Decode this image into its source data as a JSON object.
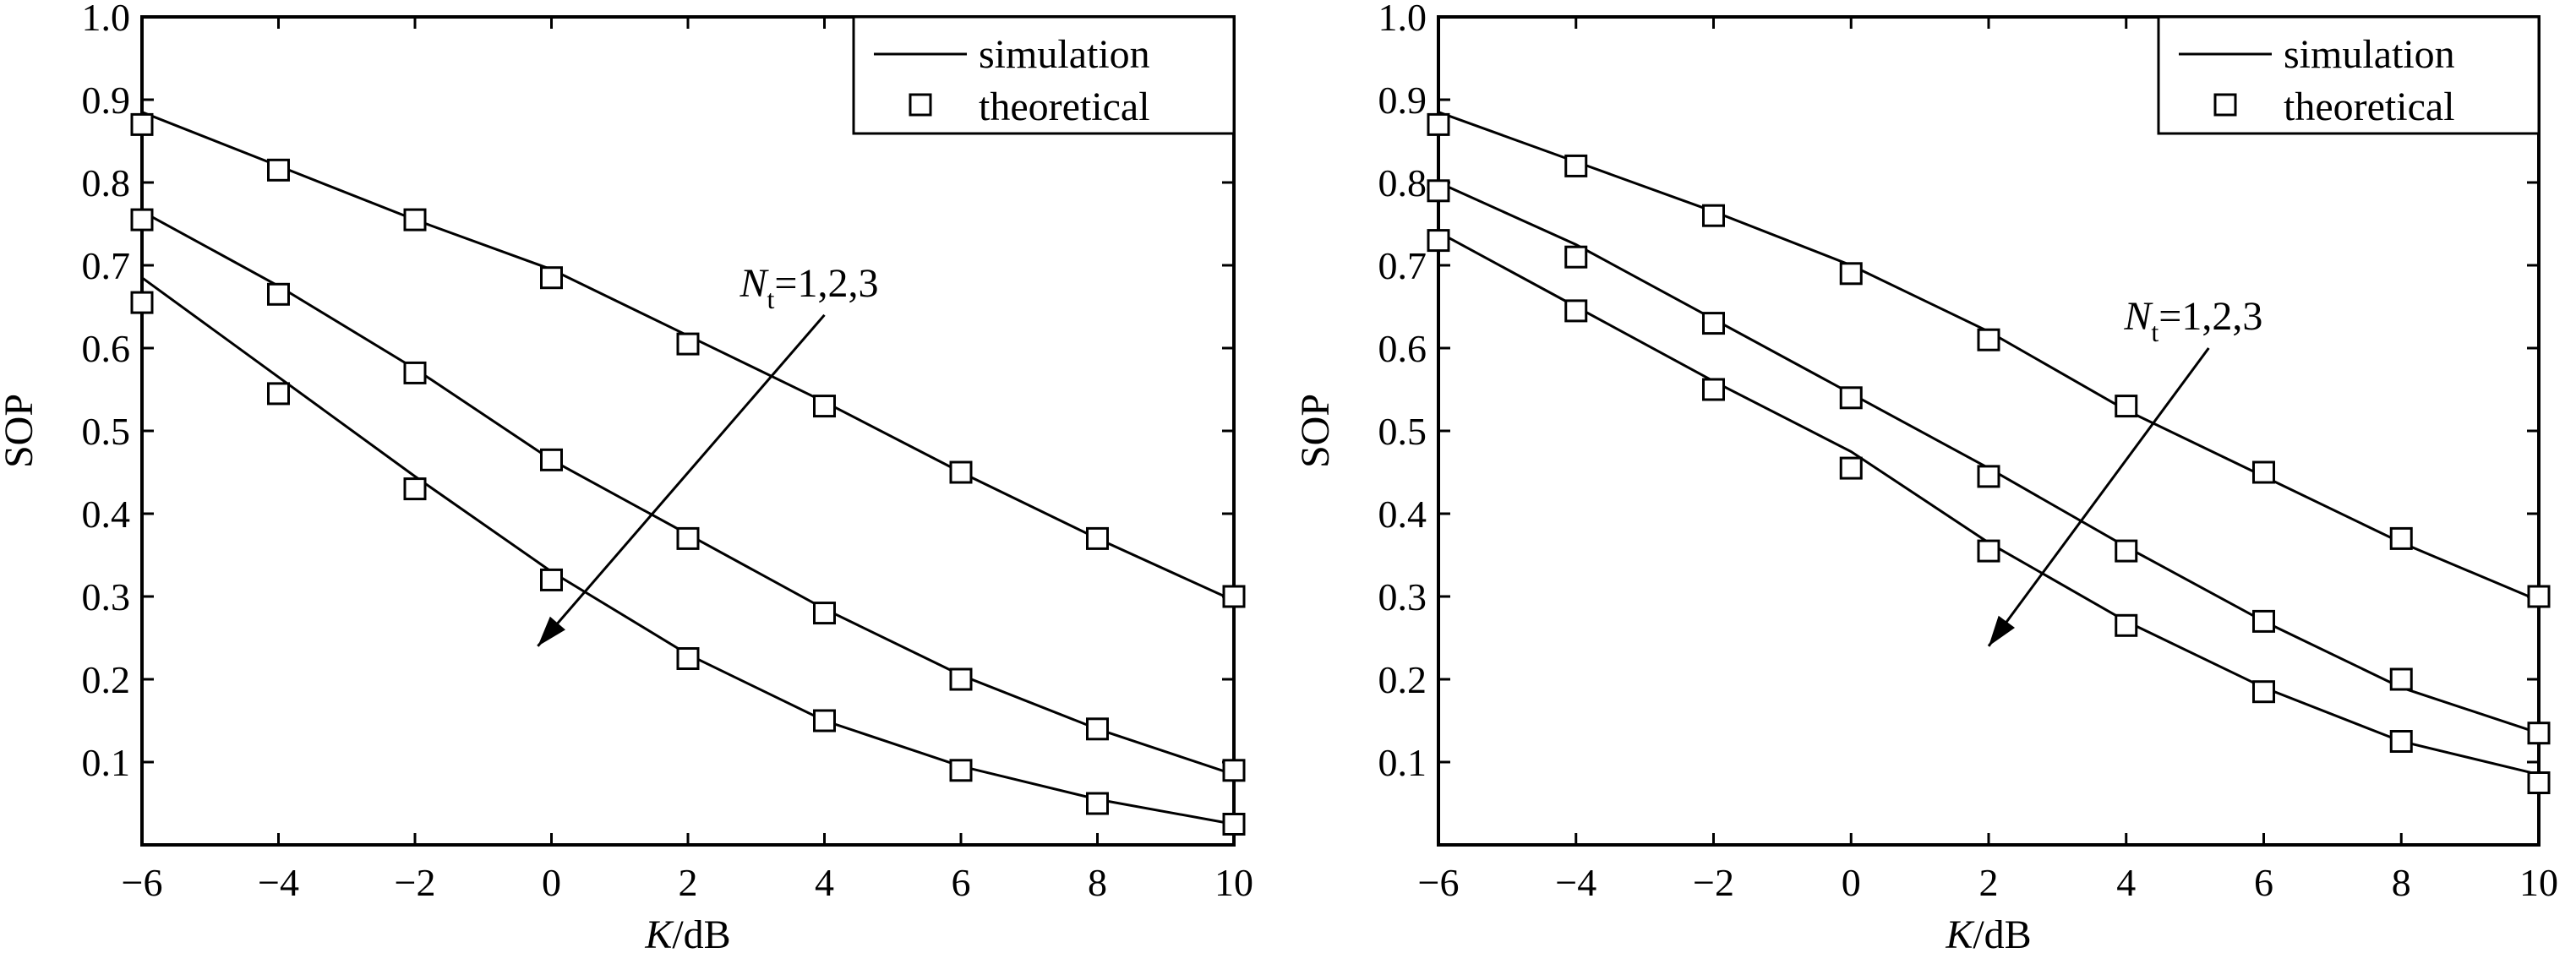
{
  "chart_data": [
    {
      "type": "line",
      "xlabel": {
        "italic": "K",
        "rest": "/dB"
      },
      "ylabel": "SOP",
      "xlim": [
        -6,
        10
      ],
      "ylim": [
        0,
        1.0
      ],
      "xticks": [
        -6,
        -4,
        -2,
        0,
        2,
        4,
        6,
        8,
        10
      ],
      "xtick_labels": [
        "−6",
        "−4",
        "−2",
        "0",
        "2",
        "4",
        "6",
        "8",
        "10"
      ],
      "yticks": [
        0.1,
        0.2,
        0.3,
        0.4,
        0.5,
        0.6,
        0.7,
        0.8,
        0.9,
        1.0
      ],
      "ytick_labels": [
        "0.1",
        "0.2",
        "0.3",
        "0.4",
        "0.5",
        "0.6",
        "0.7",
        "0.8",
        "0.9",
        "1.0"
      ],
      "legend": {
        "position": "top-right",
        "simulation": "simulation",
        "theoretical": "theoretical"
      },
      "annotation": {
        "symbol": "N",
        "sub": "t",
        "text": "=1,2,3",
        "arrow_from": [
          4,
          0.64
        ],
        "arrow_to": [
          -0.2,
          0.24
        ]
      },
      "x": [
        -6,
        -4,
        -2,
        0,
        2,
        4,
        6,
        8,
        10
      ],
      "series": [
        {
          "simulation": [
            0.885,
            0.82,
            0.755,
            0.695,
            0.615,
            0.535,
            0.45,
            0.37,
            0.295
          ],
          "theoretical": [
            0.87,
            0.815,
            0.755,
            0.685,
            0.605,
            0.53,
            0.45,
            0.37,
            0.3
          ]
        },
        {
          "simulation": [
            0.765,
            0.675,
            0.575,
            0.465,
            0.375,
            0.285,
            0.205,
            0.14,
            0.085
          ],
          "theoretical": [
            0.755,
            0.665,
            0.57,
            0.465,
            0.37,
            0.28,
            0.2,
            0.14,
            0.09
          ]
        },
        {
          "simulation": [
            0.685,
            0.565,
            0.445,
            0.33,
            0.23,
            0.15,
            0.095,
            0.055,
            0.025
          ],
          "theoretical": [
            0.655,
            0.545,
            0.43,
            0.32,
            0.225,
            0.15,
            0.09,
            0.05,
            0.025
          ]
        }
      ]
    },
    {
      "type": "line",
      "xlabel": {
        "italic": "K",
        "rest": "/dB"
      },
      "ylabel": "SOP",
      "xlim": [
        -6,
        10
      ],
      "ylim": [
        0,
        1.0
      ],
      "xticks": [
        -6,
        -4,
        -2,
        0,
        2,
        4,
        6,
        8,
        10
      ],
      "xtick_labels": [
        "−6",
        "−4",
        "−2",
        "0",
        "2",
        "4",
        "6",
        "8",
        "10"
      ],
      "yticks": [
        0.1,
        0.2,
        0.3,
        0.4,
        0.5,
        0.6,
        0.7,
        0.8,
        0.9,
        1.0
      ],
      "ytick_labels": [
        "0.1",
        "0.2",
        "0.3",
        "0.4",
        "0.5",
        "0.6",
        "0.7",
        "0.8",
        "0.9",
        "1.0"
      ],
      "legend": {
        "position": "top-right",
        "simulation": "simulation",
        "theoretical": "theoretical"
      },
      "annotation": {
        "symbol": "N",
        "sub": "t",
        "text": "=1,2,3",
        "arrow_from": [
          5.2,
          0.6
        ],
        "arrow_to": [
          2.0,
          0.24
        ]
      },
      "x": [
        -6,
        -4,
        -2,
        0,
        2,
        4,
        6,
        8,
        10
      ],
      "series": [
        {
          "simulation": [
            0.885,
            0.825,
            0.765,
            0.7,
            0.62,
            0.525,
            0.445,
            0.365,
            0.295
          ],
          "theoretical": [
            0.87,
            0.82,
            0.76,
            0.69,
            0.61,
            0.53,
            0.45,
            0.37,
            0.3
          ]
        },
        {
          "simulation": [
            0.8,
            0.725,
            0.635,
            0.545,
            0.455,
            0.36,
            0.27,
            0.19,
            0.135
          ],
          "theoretical": [
            0.79,
            0.71,
            0.63,
            0.54,
            0.445,
            0.355,
            0.27,
            0.2,
            0.135
          ]
        },
        {
          "simulation": [
            0.74,
            0.65,
            0.56,
            0.475,
            0.365,
            0.27,
            0.19,
            0.125,
            0.085
          ],
          "theoretical": [
            0.73,
            0.645,
            0.55,
            0.455,
            0.355,
            0.265,
            0.185,
            0.125,
            0.075
          ]
        }
      ]
    }
  ]
}
